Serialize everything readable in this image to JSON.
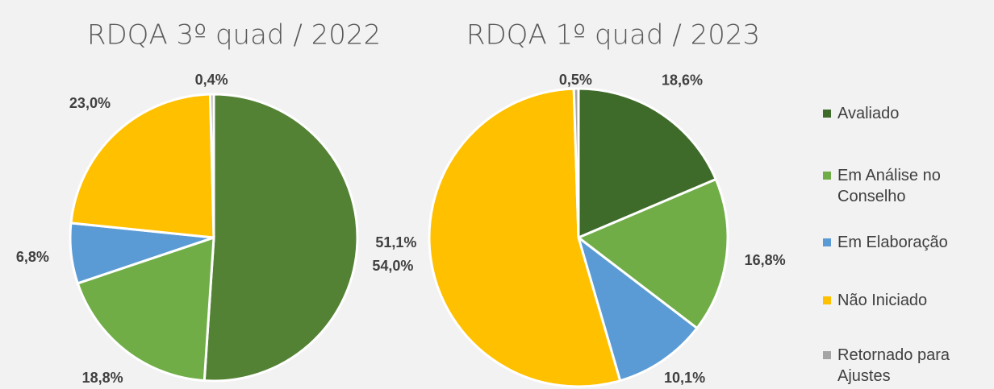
{
  "chart_data": [
    {
      "type": "pie",
      "title": "RDQA 3º quad / 2022",
      "values": [
        51.1,
        18.8,
        6.8,
        23.0,
        0.4
      ],
      "value_labels": [
        "51,1%",
        "18,8%",
        "6,8%",
        "23,0%",
        "0,4%"
      ],
      "colors": [
        "#548235",
        "#70ad47",
        "#5b9bd5",
        "#ffc000",
        "#a5a5a5"
      ]
    },
    {
      "type": "pie",
      "title": "RDQA 1º quad / 2023",
      "categories": [
        "Avaliado",
        "Em Análise no Conselho",
        "Em Elaboração",
        "Não Iniciado",
        "Retornado para Ajustes"
      ],
      "values": [
        18.6,
        16.8,
        10.1,
        54.0,
        0.5
      ],
      "value_labels": [
        "18,6%",
        "16,8%",
        "10,1%",
        "54,0%",
        "0,5%"
      ],
      "colors": [
        "#3f6b2a",
        "#70ad47",
        "#5b9bd5",
        "#ffc000",
        "#a5a5a5"
      ],
      "legend": "right"
    }
  ]
}
